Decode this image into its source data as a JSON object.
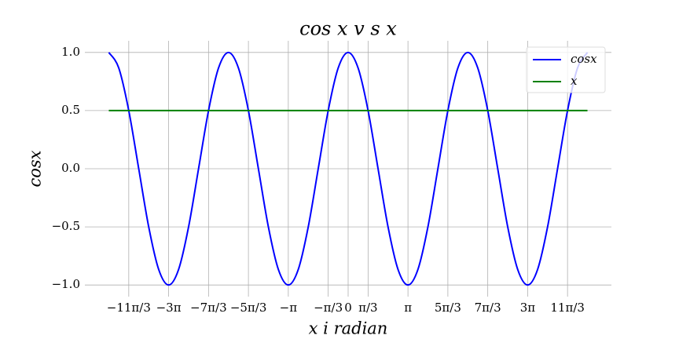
{
  "chart_data": {
    "type": "line",
    "title": "cos x v s x",
    "x_label": "x i radian",
    "y_label": "cosx",
    "xlim": [
      -13.823,
      13.823
    ],
    "ylim": [
      -1.1,
      1.1
    ],
    "grid": true,
    "legend": "upper right",
    "xticks": [
      {
        "value": -11.5192,
        "label": "−11π/3"
      },
      {
        "value": -9.4248,
        "label": "−3π"
      },
      {
        "value": -7.3304,
        "label": "−7π/3"
      },
      {
        "value": -5.236,
        "label": "−5π/3"
      },
      {
        "value": -3.1416,
        "label": "−π"
      },
      {
        "value": -1.0472,
        "label": "−π/3"
      },
      0,
      {
        "value": 1.0472,
        "label": "π/3"
      },
      {
        "value": 3.1416,
        "label": "π"
      },
      {
        "value": 5.236,
        "label": "5π/3"
      },
      {
        "value": 7.3304,
        "label": "7π/3"
      },
      {
        "value": 9.4248,
        "label": "3π"
      },
      {
        "value": 11.5192,
        "label": "11π/3"
      }
    ],
    "yticks": [
      {
        "value": -1.0,
        "label": "−1.0"
      },
      {
        "value": -0.5,
        "label": "−0.5"
      },
      {
        "value": 0.0,
        "label": "0.0"
      },
      {
        "value": 0.5,
        "label": "0.5"
      },
      {
        "value": 1.0,
        "label": "1.0"
      }
    ],
    "series": [
      {
        "name": "cosx",
        "color": "#0000ff",
        "x": [
          -12.5664,
          -12.0428,
          -11.5192,
          -10.9956,
          -10.472,
          -9.9484,
          -9.4248,
          -8.9012,
          -8.3776,
          -7.854,
          -7.3304,
          -6.8068,
          -6.2832,
          -5.7596,
          -5.236,
          -4.7124,
          -4.1888,
          -3.6652,
          -3.1416,
          -2.618,
          -2.0944,
          -1.5708,
          -1.0472,
          -0.5236,
          0,
          0.5236,
          1.0472,
          1.5708,
          2.0944,
          2.618,
          3.1416,
          3.6652,
          4.1888,
          4.7124,
          5.236,
          5.7596,
          6.2832,
          6.8068,
          7.3304,
          7.854,
          8.3776,
          8.9012,
          9.4248,
          9.9484,
          10.472,
          10.9956,
          11.5192,
          12.0428,
          12.5664
        ],
        "values": [
          1,
          0.866,
          0.5,
          0,
          -0.5,
          -0.866,
          -1,
          -0.866,
          -0.5,
          0,
          0.5,
          0.866,
          1,
          0.866,
          0.5,
          0,
          -0.5,
          -0.866,
          -1,
          -0.866,
          -0.5,
          0,
          0.5,
          0.866,
          1,
          0.866,
          0.5,
          0,
          -0.5,
          -0.866,
          -1,
          -0.866,
          -0.5,
          0,
          0.5,
          0.866,
          1,
          0.866,
          0.5,
          0,
          -0.5,
          -0.866,
          -1,
          -0.866,
          -0.5,
          0,
          0.5,
          0.866,
          1
        ]
      },
      {
        "name": "x",
        "color": "#008000",
        "x": [
          -12.5664,
          12.5664
        ],
        "values": [
          0.5,
          0.5
        ]
      }
    ]
  }
}
